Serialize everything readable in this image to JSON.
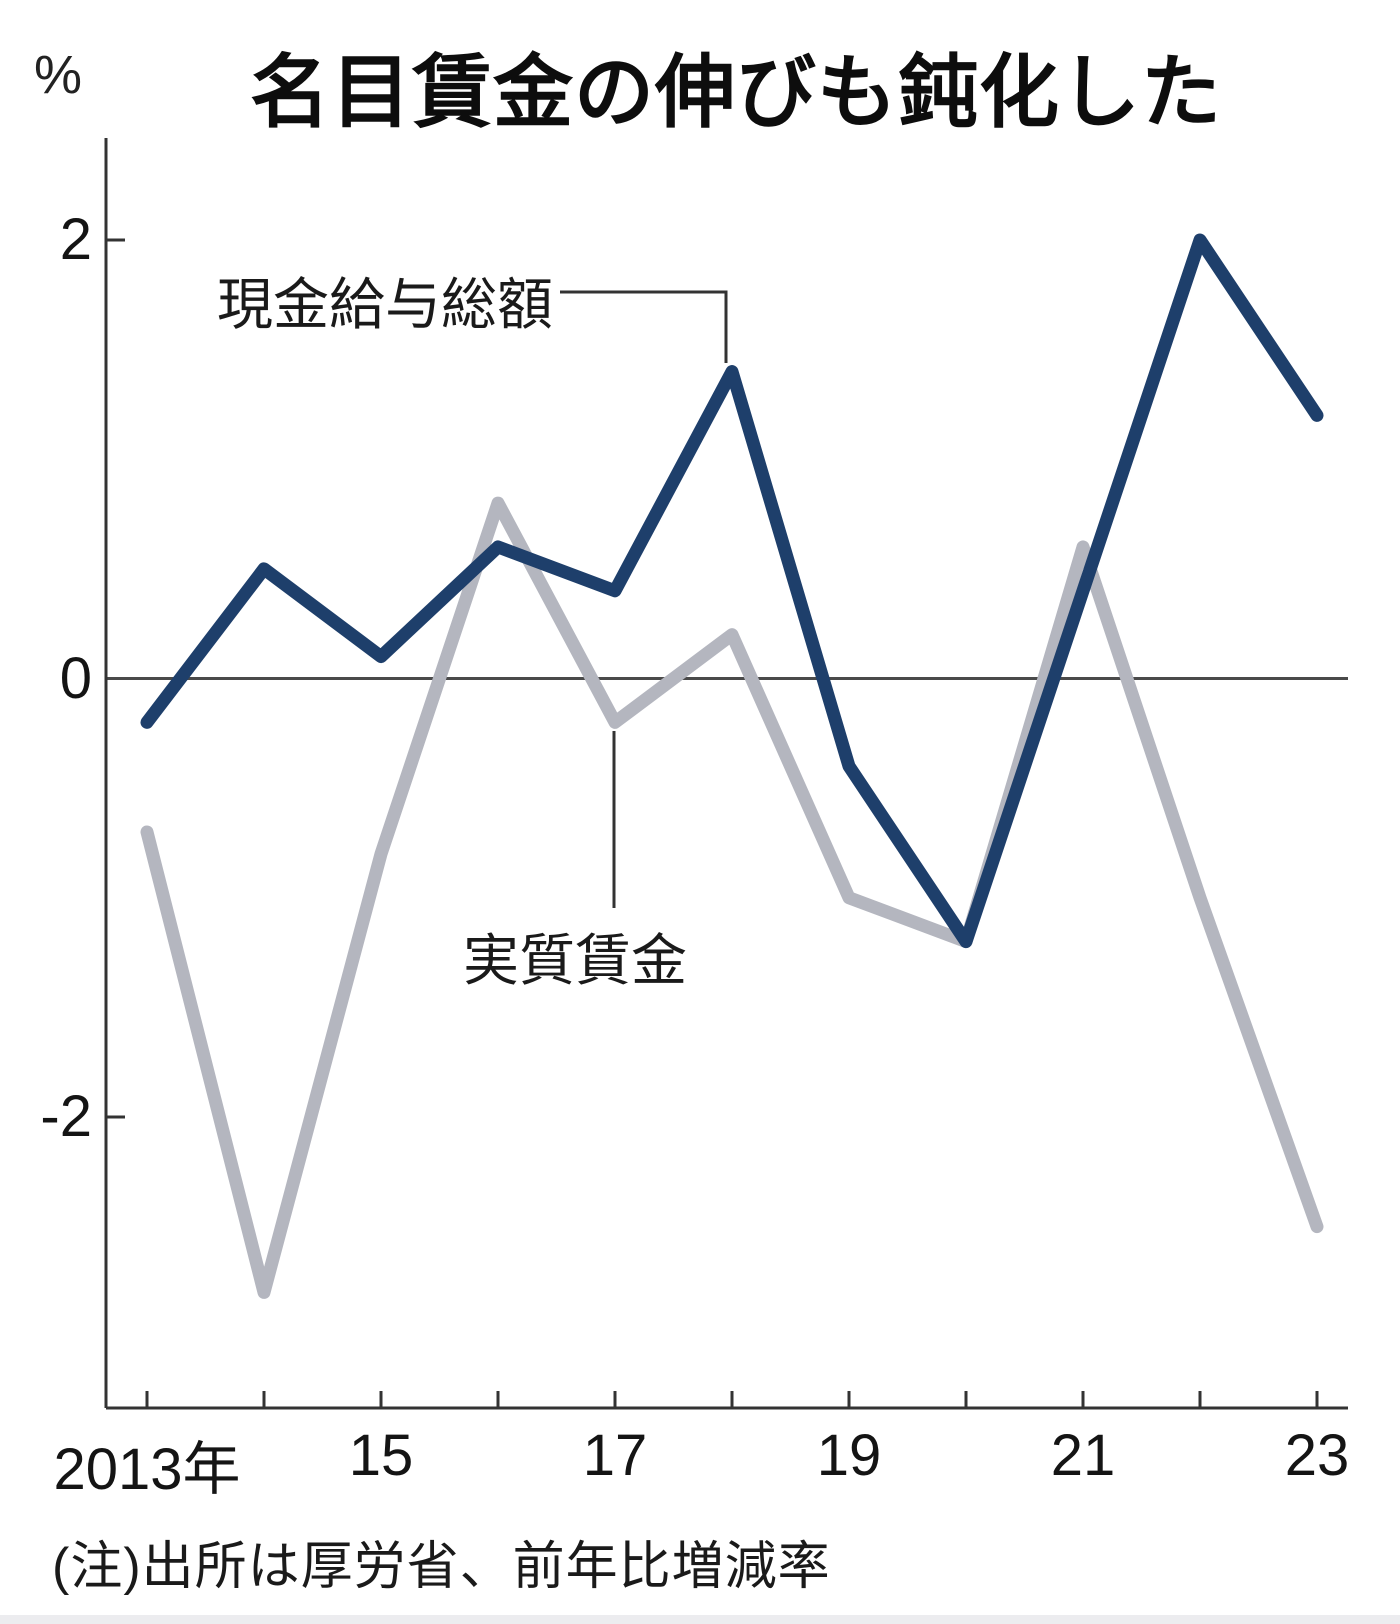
{
  "title": "名目賃金の伸びも鈍化した",
  "unit_label": "%",
  "note": {
    "text": "(注)出所は厚労省、前年比増減率"
  },
  "colors": {
    "nominal_line": "#1e3f6b",
    "real_line": "#b4b6bf",
    "axis": "#333333",
    "zero_line": "#4a4a4a",
    "text": "#1a1a1a"
  },
  "chart_data": {
    "type": "line",
    "title": "名目賃金の伸びも鈍化した",
    "xlabel": "",
    "ylabel": "%",
    "grid": false,
    "legend_position": "inline-annotations",
    "x": [
      2013,
      2014,
      2015,
      2016,
      2017,
      2018,
      2019,
      2020,
      2021,
      2022,
      2023
    ],
    "x_tick_labels": [
      {
        "year": 2013,
        "label": "2013年"
      },
      {
        "year": 2015,
        "label": "15"
      },
      {
        "year": 2017,
        "label": "17"
      },
      {
        "year": 2019,
        "label": "19"
      },
      {
        "year": 2021,
        "label": "21"
      },
      {
        "year": 2023,
        "label": "23"
      }
    ],
    "y_ticks": [
      {
        "value": 2,
        "label": "2"
      },
      {
        "value": 0,
        "label": "0"
      },
      {
        "value": -2,
        "label": "-2"
      }
    ],
    "ylim": [
      -3.33,
      2.46
    ],
    "series": [
      {
        "key": "nominal",
        "name": "現金給与総額",
        "color": "#1e3f6b",
        "values": [
          -0.2,
          0.5,
          0.1,
          0.6,
          0.4,
          1.4,
          -0.4,
          -1.2,
          0.4,
          2.0,
          1.2
        ]
      },
      {
        "key": "real",
        "name": "実質賃金",
        "color": "#b4b6bf",
        "values": [
          -0.7,
          -2.8,
          -0.8,
          0.8,
          -0.2,
          0.2,
          -1.0,
          -1.2,
          0.6,
          -1.0,
          -2.5
        ]
      }
    ],
    "annotations": [
      {
        "text": "現金給与総額",
        "points_to": {
          "year": 2018,
          "series": "nominal"
        }
      },
      {
        "text": "実質賃金",
        "points_to": {
          "year": 2017,
          "series": "real"
        }
      }
    ]
  }
}
